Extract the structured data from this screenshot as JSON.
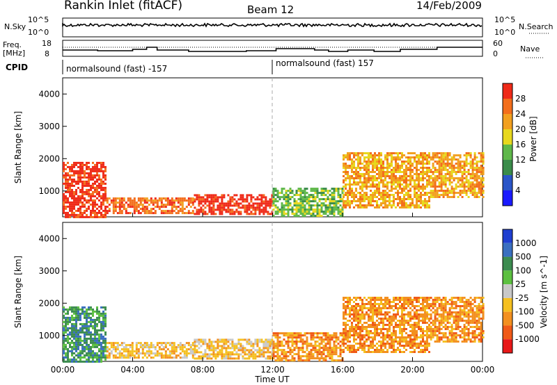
{
  "header": {
    "station": "Rankin Inlet (fitACF)",
    "beam": "Beam 12",
    "date": "14/Feb/2009"
  },
  "panels": {
    "nsky": {
      "label": "N.Sky",
      "ticks": [
        "10^5",
        "10^0"
      ],
      "right_ticks": [
        "10^5",
        "10^0"
      ],
      "right_label": "N.Search"
    },
    "freq": {
      "label_top": "Freq.",
      "label_bottom": "[MHz]",
      "ticks": [
        "18",
        "8"
      ],
      "right_ticks": [
        "60",
        "0"
      ],
      "right_label": "Nave"
    },
    "cpid": {
      "label": "CPID",
      "segments": [
        "normalsound (fast) -157",
        "normalsound (fast) 157"
      ]
    }
  },
  "chart_data": [
    {
      "type": "heatmap",
      "title": "Power",
      "ylabel": "Slant Range [km]",
      "xlabel": "Time UT",
      "xlim": [
        "00:00",
        "24:00"
      ],
      "x_ticks": [
        "00:00",
        "04:00",
        "08:00",
        "12:00",
        "16:00",
        "20:00",
        "00:00"
      ],
      "ylim": [
        200,
        4500
      ],
      "y_ticks": [
        1000,
        2000,
        3000,
        4000
      ],
      "colorbar": {
        "label": "Power [dB]",
        "range": [
          0,
          32
        ],
        "ticks": [
          4,
          8,
          12,
          16,
          20,
          24,
          28
        ],
        "colors": [
          "#1a1aff",
          "#2a55c8",
          "#3a8c4a",
          "#5fb84a",
          "#e8d81e",
          "#f2a020",
          "#f36e1c",
          "#ef2a18"
        ]
      },
      "regions": [
        {
          "t": [
            0.0,
            2.5
          ],
          "r": [
            200,
            1900
          ],
          "value": 28
        },
        {
          "t": [
            2.5,
            7.5
          ],
          "r": [
            300,
            800
          ],
          "value": 24
        },
        {
          "t": [
            7.5,
            12.0
          ],
          "r": [
            300,
            900
          ],
          "value": 28
        },
        {
          "t": [
            12.0,
            16.0
          ],
          "r": [
            200,
            1100
          ],
          "value": 12
        },
        {
          "t": [
            16.0,
            21.0
          ],
          "r": [
            500,
            2200
          ],
          "value": 20
        },
        {
          "t": [
            21.0,
            24.0
          ],
          "r": [
            800,
            2200
          ],
          "value": 20
        }
      ]
    },
    {
      "type": "heatmap",
      "title": "Velocity",
      "ylabel": "Slant Range [km]",
      "xlabel": "Time UT",
      "xlim": [
        "00:00",
        "24:00"
      ],
      "x_ticks": [
        "00:00",
        "04:00",
        "08:00",
        "12:00",
        "16:00",
        "20:00",
        "00:00"
      ],
      "ylim": [
        200,
        4500
      ],
      "y_ticks": [
        1000,
        2000,
        3000,
        4000
      ],
      "colorbar": {
        "label": "Velocity [m s^-1]",
        "ticks": [
          "1000",
          "500",
          "100",
          "25",
          "-25",
          "-100",
          "-500",
          "-1000"
        ],
        "colors": [
          "#1f3fd0",
          "#3a6fc0",
          "#3c8c50",
          "#5cc040",
          "#c8c8c8",
          "#f5c020",
          "#f39020",
          "#f05a18",
          "#e81818"
        ]
      },
      "regions": [
        {
          "t": [
            0.0,
            2.5
          ],
          "r": [
            200,
            1900
          ],
          "value": 100
        },
        {
          "t": [
            2.5,
            7.5
          ],
          "r": [
            300,
            800
          ],
          "value": -100
        },
        {
          "t": [
            7.5,
            12.0
          ],
          "r": [
            300,
            900
          ],
          "value": -100
        },
        {
          "t": [
            12.0,
            16.0
          ],
          "r": [
            200,
            1100
          ],
          "value": -500
        },
        {
          "t": [
            16.0,
            21.0
          ],
          "r": [
            500,
            2200
          ],
          "value": -500
        },
        {
          "t": [
            21.0,
            24.0
          ],
          "r": [
            800,
            2200
          ],
          "value": -500
        }
      ]
    }
  ],
  "axis": {
    "x_label": "Time UT",
    "y_label": "Slant Range [km]",
    "x_ticks": [
      "00:00",
      "04:00",
      "08:00",
      "12:00",
      "16:00",
      "20:00",
      "00:00"
    ]
  }
}
